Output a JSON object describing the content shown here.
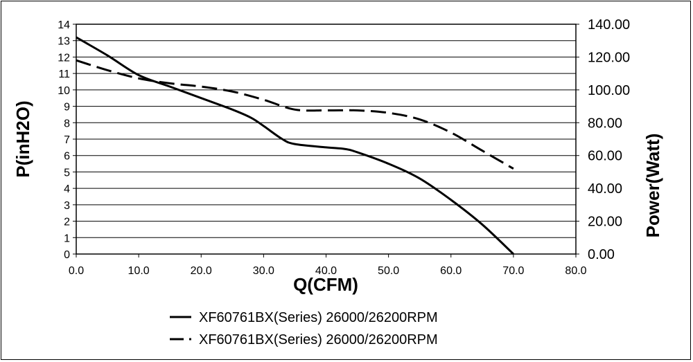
{
  "chart_data": {
    "type": "line",
    "xlabel": "Q(CFM)",
    "ylabel_left": "P(inH2O)",
    "ylabel_right": "Power(Watt)",
    "xlim": [
      0,
      80
    ],
    "ylim_left": [
      0,
      14
    ],
    "ylim_right": [
      0,
      140
    ],
    "x_ticks": [
      "0.0",
      "10.0",
      "20.0",
      "30.0",
      "40.0",
      "50.0",
      "60.0",
      "70.0",
      "80.0"
    ],
    "y_left_ticks": [
      "0",
      "1",
      "2",
      "3",
      "4",
      "5",
      "6",
      "7",
      "8",
      "9",
      "10",
      "11",
      "12",
      "13",
      "14"
    ],
    "y_right_ticks": [
      "0.00",
      "20.00",
      "40.00",
      "60.00",
      "80.00",
      "100.00",
      "120.00",
      "140.00"
    ],
    "grid": "horizontal",
    "legend_position": "bottom",
    "series": [
      {
        "name": "XF60761BX(Series) 26000/26200RPM",
        "axis": "left",
        "style": "solid",
        "x": [
          0,
          5,
          10,
          15,
          20,
          25,
          28,
          30,
          33,
          35,
          40,
          43,
          45,
          50,
          55,
          60,
          65,
          70
        ],
        "y": [
          13.2,
          12.1,
          10.9,
          10.2,
          9.5,
          8.8,
          8.3,
          7.8,
          7.0,
          6.7,
          6.5,
          6.4,
          6.2,
          5.5,
          4.6,
          3.3,
          1.8,
          0.0
        ]
      },
      {
        "name": "XF60761BX(Series) 26000/26200RPM",
        "axis": "right",
        "style": "dashed",
        "x": [
          0,
          5,
          10,
          15,
          20,
          25,
          30,
          35,
          40,
          45,
          50,
          55,
          60,
          65,
          70
        ],
        "y": [
          118,
          112,
          107,
          104,
          102,
          99,
          94,
          88,
          87.5,
          87.5,
          86,
          82,
          74,
          63,
          52
        ]
      }
    ]
  }
}
